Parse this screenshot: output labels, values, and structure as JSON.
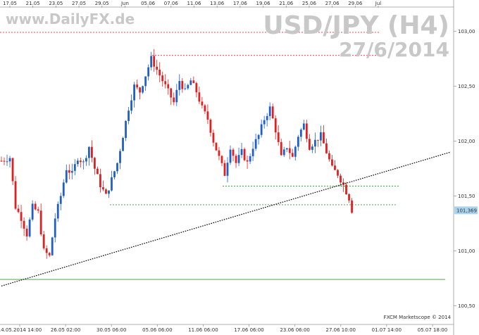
{
  "chart_data": {
    "type": "candlestick",
    "watermark_site": "www.DailyFX.de",
    "title": "USD/JPY (H4)",
    "date": "27/6/2014",
    "credit": "FXCM Marketscope © 2014",
    "top_axis_labels": [
      "17.05",
      "21.05",
      "23.05",
      "27.05",
      "29.05",
      "Jun",
      "05.06",
      "07.06",
      "11.06",
      "13.06",
      "17.06",
      "19.06",
      "21.06",
      "25.06",
      "27.06",
      "29.06",
      "Jul"
    ],
    "bottom_axis_labels": [
      "14.05.2014 14:00",
      "26.05 02:00",
      "30.05 06:00",
      "05.06 06:00",
      "11.06 06:00",
      "17.06 06:00",
      "23.06 06:00",
      "27.06 10:00",
      "01.07 14:00",
      "05.07 18:00"
    ],
    "y_ticks": [
      "103,00",
      "102,50",
      "102,00",
      "101,50",
      "101,00",
      "100,50"
    ],
    "ylim": [
      100.33,
      103.22
    ],
    "last_price": "101,369",
    "colors": {
      "up": "#1f5fcc",
      "down": "#e02020",
      "trend": "#000000",
      "support": "#3a9a3a",
      "resistance": "#e03030",
      "price_tag": "#a8d4f0"
    },
    "levels": [
      {
        "kind": "resistance",
        "value": 102.99
      },
      {
        "kind": "resistance",
        "value": 102.78
      },
      {
        "kind": "support",
        "value": 101.59
      },
      {
        "kind": "support",
        "value": 101.42
      },
      {
        "kind": "support",
        "value": 100.74
      }
    ],
    "trendline": {
      "from": {
        "x": 0,
        "y": 100.68
      },
      "to": {
        "x": 159,
        "y": 101.9
      }
    },
    "close_path": [
      [
        0,
        101.82
      ],
      [
        3,
        101.85
      ],
      [
        5,
        101.4
      ],
      [
        7,
        101.3
      ],
      [
        9,
        101.15
      ],
      [
        11,
        101.4
      ],
      [
        13,
        101.35
      ],
      [
        15,
        101.0
      ],
      [
        17,
        100.95
      ],
      [
        19,
        101.3
      ],
      [
        21,
        101.5
      ],
      [
        23,
        101.75
      ],
      [
        25,
        101.7
      ],
      [
        27,
        101.85
      ],
      [
        29,
        101.8
      ],
      [
        31,
        101.95
      ],
      [
        33,
        101.75
      ],
      [
        35,
        101.6
      ],
      [
        37,
        101.5
      ],
      [
        39,
        101.65
      ],
      [
        41,
        101.8
      ],
      [
        43,
        102.05
      ],
      [
        45,
        102.3
      ],
      [
        47,
        102.5
      ],
      [
        49,
        102.45
      ],
      [
        51,
        102.6
      ],
      [
        53,
        102.75
      ],
      [
        55,
        102.65
      ],
      [
        57,
        102.55
      ],
      [
        59,
        102.45
      ],
      [
        61,
        102.35
      ],
      [
        63,
        102.55
      ],
      [
        65,
        102.45
      ],
      [
        67,
        102.55
      ],
      [
        69,
        102.45
      ],
      [
        71,
        102.3
      ],
      [
        73,
        102.2
      ],
      [
        75,
        102.0
      ],
      [
        77,
        101.85
      ],
      [
        79,
        101.7
      ],
      [
        81,
        101.95
      ],
      [
        83,
        101.8
      ],
      [
        85,
        101.9
      ],
      [
        87,
        101.8
      ],
      [
        89,
        101.95
      ],
      [
        91,
        102.05
      ],
      [
        93,
        102.2
      ],
      [
        95,
        102.3
      ],
      [
        97,
        102.1
      ],
      [
        99,
        101.85
      ],
      [
        101,
        101.95
      ],
      [
        103,
        101.85
      ],
      [
        105,
        102.05
      ],
      [
        107,
        102.15
      ],
      [
        109,
        101.95
      ],
      [
        111,
        102.0
      ],
      [
        113,
        102.05
      ],
      [
        115,
        101.9
      ],
      [
        117,
        101.75
      ],
      [
        119,
        101.7
      ],
      [
        121,
        101.6
      ],
      [
        123,
        101.48
      ],
      [
        124,
        101.37
      ]
    ]
  }
}
